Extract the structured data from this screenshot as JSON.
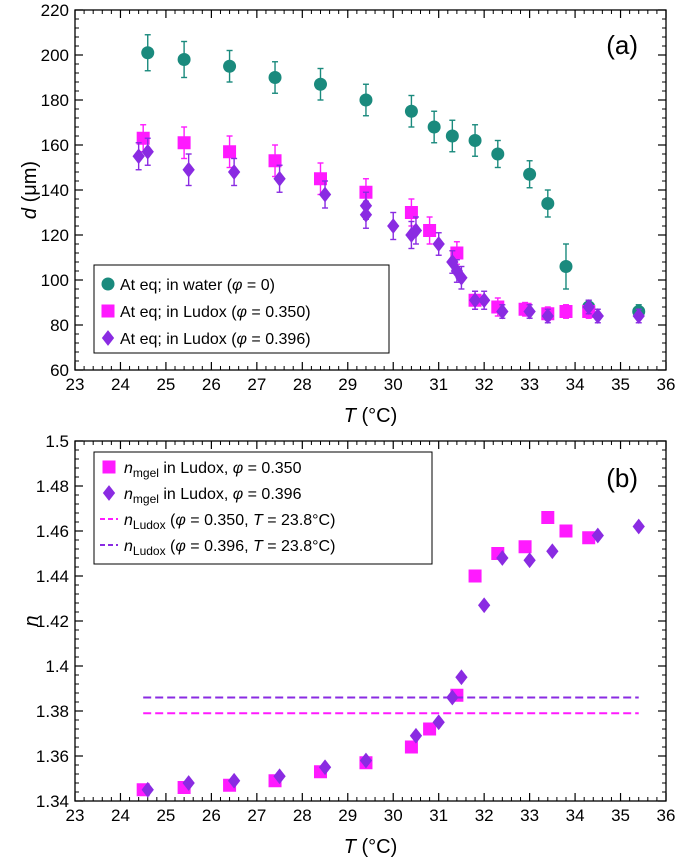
{
  "chart_data": [
    {
      "panel": "(a)",
      "type": "scatter",
      "xlabel": "T (°C)",
      "ylabel": "d (μm)",
      "xlim": [
        23,
        36
      ],
      "ylim": [
        60,
        220
      ],
      "xticks": [
        23,
        24,
        25,
        26,
        27,
        28,
        29,
        30,
        31,
        32,
        33,
        34,
        35,
        36
      ],
      "yticks": [
        60,
        80,
        100,
        120,
        140,
        160,
        180,
        200,
        220
      ],
      "legend_position": "bottom-left",
      "series": [
        {
          "name": "At eq; in water (φ = 0)",
          "marker": "circle",
          "color": "#1a8a7d",
          "points": [
            {
              "x": 24.6,
              "y": 201,
              "err": 8
            },
            {
              "x": 25.4,
              "y": 198,
              "err": 8
            },
            {
              "x": 26.4,
              "y": 195,
              "err": 7
            },
            {
              "x": 27.4,
              "y": 190,
              "err": 7
            },
            {
              "x": 28.4,
              "y": 187,
              "err": 7
            },
            {
              "x": 29.4,
              "y": 180,
              "err": 7
            },
            {
              "x": 30.4,
              "y": 175,
              "err": 7
            },
            {
              "x": 30.9,
              "y": 168,
              "err": 7
            },
            {
              "x": 31.3,
              "y": 164,
              "err": 7
            },
            {
              "x": 31.8,
              "y": 162,
              "err": 7
            },
            {
              "x": 32.3,
              "y": 156,
              "err": 6
            },
            {
              "x": 33.0,
              "y": 147,
              "err": 6
            },
            {
              "x": 33.4,
              "y": 134,
              "err": 6
            },
            {
              "x": 33.8,
              "y": 106,
              "err": 10
            },
            {
              "x": 34.3,
              "y": 88,
              "err": 3
            },
            {
              "x": 35.4,
              "y": 86,
              "err": 3
            }
          ]
        },
        {
          "name": "At eq; in Ludox (φ = 0.350)",
          "marker": "square",
          "color": "#ff1aff",
          "points": [
            {
              "x": 24.5,
              "y": 163,
              "err": 6
            },
            {
              "x": 25.4,
              "y": 161,
              "err": 7
            },
            {
              "x": 26.4,
              "y": 157,
              "err": 7
            },
            {
              "x": 27.4,
              "y": 153,
              "err": 7
            },
            {
              "x": 28.4,
              "y": 145,
              "err": 7
            },
            {
              "x": 29.4,
              "y": 139,
              "err": 6
            },
            {
              "x": 30.4,
              "y": 130,
              "err": 6
            },
            {
              "x": 30.8,
              "y": 122,
              "err": 6
            },
            {
              "x": 31.4,
              "y": 112,
              "err": 5
            },
            {
              "x": 31.8,
              "y": 91,
              "err": 4
            },
            {
              "x": 32.3,
              "y": 88,
              "err": 4
            },
            {
              "x": 32.9,
              "y": 87,
              "err": 3
            },
            {
              "x": 33.4,
              "y": 85,
              "err": 3
            },
            {
              "x": 33.8,
              "y": 86,
              "err": 3
            },
            {
              "x": 34.3,
              "y": 86,
              "err": 3
            }
          ]
        },
        {
          "name": "At eq; in Ludox (φ = 0.396)",
          "marker": "diamond",
          "color": "#8a2be2",
          "points": [
            {
              "x": 24.4,
              "y": 155,
              "err": 6
            },
            {
              "x": 24.6,
              "y": 157,
              "err": 6
            },
            {
              "x": 25.5,
              "y": 149,
              "err": 7
            },
            {
              "x": 26.5,
              "y": 148,
              "err": 6
            },
            {
              "x": 27.5,
              "y": 145,
              "err": 6
            },
            {
              "x": 28.5,
              "y": 138,
              "err": 6
            },
            {
              "x": 29.4,
              "y": 133,
              "err": 6
            },
            {
              "x": 29.4,
              "y": 129,
              "err": 6
            },
            {
              "x": 30.0,
              "y": 124,
              "err": 6
            },
            {
              "x": 30.4,
              "y": 120,
              "err": 6
            },
            {
              "x": 30.5,
              "y": 122,
              "err": 6
            },
            {
              "x": 31.0,
              "y": 116,
              "err": 5
            },
            {
              "x": 31.3,
              "y": 108,
              "err": 5
            },
            {
              "x": 31.4,
              "y": 104,
              "err": 5
            },
            {
              "x": 31.5,
              "y": 101,
              "err": 5
            },
            {
              "x": 31.8,
              "y": 91,
              "err": 4
            },
            {
              "x": 32.0,
              "y": 91,
              "err": 4
            },
            {
              "x": 32.4,
              "y": 86,
              "err": 3
            },
            {
              "x": 33.0,
              "y": 86,
              "err": 3
            },
            {
              "x": 33.4,
              "y": 84,
              "err": 3
            },
            {
              "x": 34.3,
              "y": 88,
              "err": 3
            },
            {
              "x": 34.5,
              "y": 84,
              "err": 3
            },
            {
              "x": 35.4,
              "y": 84,
              "err": 3
            }
          ]
        }
      ]
    },
    {
      "panel": "(b)",
      "type": "scatter",
      "xlabel": "T (°C)",
      "ylabel": "n",
      "xlim": [
        23,
        36
      ],
      "ylim": [
        1.34,
        1.5
      ],
      "xticks": [
        23,
        24,
        25,
        26,
        27,
        28,
        29,
        30,
        31,
        32,
        33,
        34,
        35,
        36
      ],
      "yticks": [
        1.34,
        1.36,
        1.38,
        1.4,
        1.42,
        1.44,
        1.46,
        1.48,
        1.5
      ],
      "legend_position": "top-left",
      "series": [
        {
          "name": "nmgel in Ludox, φ = 0.350",
          "marker": "square",
          "color": "#ff1aff",
          "points": [
            {
              "x": 24.5,
              "y": 1.345
            },
            {
              "x": 25.4,
              "y": 1.346
            },
            {
              "x": 26.4,
              "y": 1.347
            },
            {
              "x": 27.4,
              "y": 1.349
            },
            {
              "x": 28.4,
              "y": 1.353
            },
            {
              "x": 29.4,
              "y": 1.357
            },
            {
              "x": 30.4,
              "y": 1.364
            },
            {
              "x": 30.8,
              "y": 1.372
            },
            {
              "x": 31.4,
              "y": 1.387
            },
            {
              "x": 31.8,
              "y": 1.44
            },
            {
              "x": 32.3,
              "y": 1.45
            },
            {
              "x": 32.9,
              "y": 1.453
            },
            {
              "x": 33.4,
              "y": 1.466
            },
            {
              "x": 33.8,
              "y": 1.46
            },
            {
              "x": 34.3,
              "y": 1.457
            }
          ]
        },
        {
          "name": "nmgel in Ludox, φ = 0.396",
          "marker": "diamond",
          "color": "#8a2be2",
          "points": [
            {
              "x": 24.6,
              "y": 1.345
            },
            {
              "x": 25.5,
              "y": 1.348
            },
            {
              "x": 26.5,
              "y": 1.349
            },
            {
              "x": 27.5,
              "y": 1.351
            },
            {
              "x": 28.5,
              "y": 1.355
            },
            {
              "x": 29.4,
              "y": 1.358
            },
            {
              "x": 30.5,
              "y": 1.369
            },
            {
              "x": 31.0,
              "y": 1.375
            },
            {
              "x": 31.3,
              "y": 1.386
            },
            {
              "x": 31.5,
              "y": 1.395
            },
            {
              "x": 32.0,
              "y": 1.427
            },
            {
              "x": 32.4,
              "y": 1.448
            },
            {
              "x": 33.0,
              "y": 1.447
            },
            {
              "x": 33.5,
              "y": 1.451
            },
            {
              "x": 34.5,
              "y": 1.458
            },
            {
              "x": 35.4,
              "y": 1.462
            }
          ]
        },
        {
          "name": "nLudox (φ = 0.350, T = 23.8°C)",
          "marker": "dashed-line",
          "color": "#ff1aff",
          "x_range": [
            24.5,
            35.4
          ],
          "y": 1.379
        },
        {
          "name": "nLudox (φ = 0.396, T = 23.8°C)",
          "marker": "dashed-line",
          "color": "#8a2be2",
          "x_range": [
            24.5,
            35.4
          ],
          "y": 1.386
        }
      ]
    }
  ],
  "labels": {
    "panel_a": "(a)",
    "panel_b": "(b)",
    "xlabel_T": "T",
    "xlabel_unit": " (°C)",
    "ylabel_d": "d",
    "ylabel_d_unit": " (μm)",
    "ylabel_n": "n",
    "legend_a": [
      {
        "text": "At eq; in water (",
        "phi": "φ",
        "rest": " = 0)"
      },
      {
        "text": "At eq; in Ludox (",
        "phi": "φ",
        "rest": " = 0.350)"
      },
      {
        "text": "At eq; in Ludox (",
        "phi": "φ",
        "rest": " = 0.396)"
      }
    ],
    "legend_b": [
      {
        "n": "n",
        "sub": "mgel",
        "text": " in Ludox, ",
        "phi": "φ",
        "rest": " = 0.350"
      },
      {
        "n": "n",
        "sub": "mgel",
        "text": " in Ludox, ",
        "phi": "φ",
        "rest": " = 0.396"
      },
      {
        "n": "n",
        "sub": "Ludox",
        "text": " (",
        "phi": "φ",
        "rest": " = 0.350, ",
        "t": "T",
        "rest2": " = 23.8°C)"
      },
      {
        "n": "n",
        "sub": "Ludox",
        "text": " (",
        "phi": "φ",
        "rest": " = 0.396, ",
        "t": "T",
        "rest2": " = 23.8°C)"
      }
    ]
  }
}
